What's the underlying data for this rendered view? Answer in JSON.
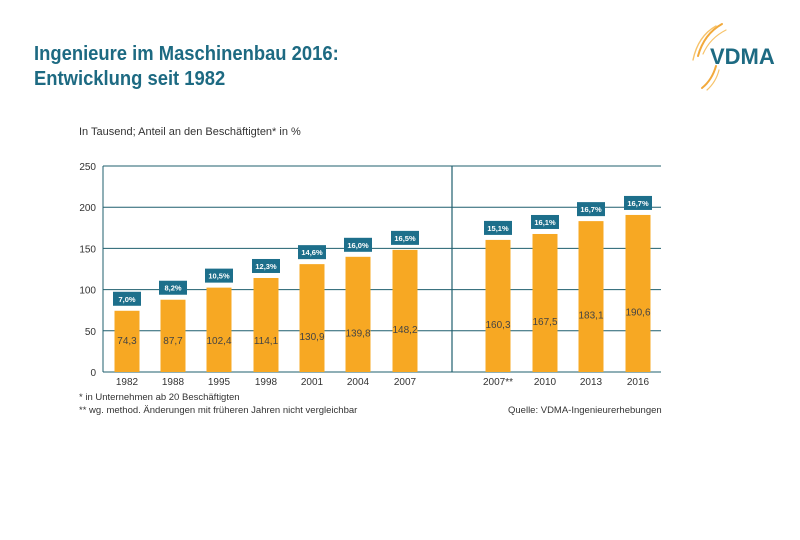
{
  "header": {
    "title_line1": "Ingenieure im Maschinenbau 2016:",
    "title_line2": "Entwicklung seit 1982",
    "logo_text": "VDMA"
  },
  "colors": {
    "bar": "#f7a823",
    "label_box": "#1d6f8b",
    "grid": "#1f5f6e",
    "title": "#1d6a82"
  },
  "chart_data": {
    "type": "bar",
    "title": "Ingenieure im Maschinenbau 2016: Entwicklung seit 1982",
    "subtitle": "In Tausend; Anteil an den Beschäftigten* in %",
    "ylim": [
      0,
      250
    ],
    "yticks": [
      "0",
      "50",
      "100",
      "150",
      "200",
      "250"
    ],
    "grid": true,
    "categories": [
      "1982",
      "1988",
      "1995",
      "1998",
      "2001",
      "2004",
      "2007",
      "2007**",
      "2010",
      "2013",
      "2016"
    ],
    "values": [
      74.3,
      87.7,
      102.4,
      114.1,
      130.9,
      139.8,
      148.2,
      160.3,
      167.5,
      183.1,
      190.6
    ],
    "value_labels": [
      "74,3",
      "87,7",
      "102,4",
      "114,1",
      "130,9",
      "139,8",
      "148,2",
      "160,3",
      "167,5",
      "183,1",
      "190,6"
    ],
    "share_labels": [
      "7,0%",
      "8,2%",
      "10,5%",
      "12,3%",
      "14,6%",
      "16,0%",
      "16,5%",
      "15,1%",
      "16,1%",
      "16,7%",
      "16,7%"
    ]
  },
  "footnotes": {
    "note1": "*  in Unternehmen ab 20 Beschäftigten",
    "note2": "** wg. method. Änderungen mit früheren Jahren nicht vergleichbar",
    "source": "Quelle: VDMA-Ingenieurerhebungen"
  }
}
